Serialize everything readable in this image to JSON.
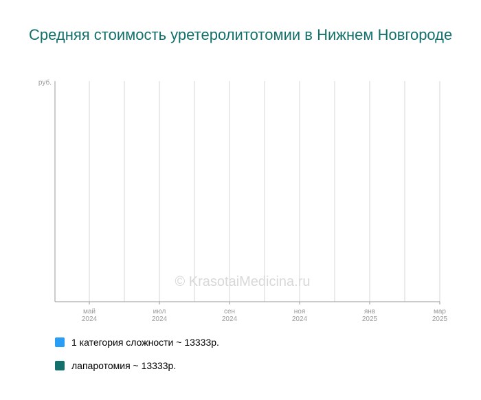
{
  "title": "Средняя стоимость уретеролитотомии в Нижнем Новгороде",
  "watermark": "© KrasotaiMedicina.ru",
  "colors": {
    "title": "#13706a",
    "axis": "#9a9a9a",
    "grid": "#d6d6d6",
    "series_1": "#2a9df4",
    "series_2": "#13706a"
  },
  "legend": [
    {
      "label": "1 категория сложности ~ 13333р.",
      "color": "#2a9df4"
    },
    {
      "label": "лапаротомия ~ 13333р.",
      "color": "#13706a"
    }
  ],
  "chart_data": {
    "type": "line",
    "title": "Средняя стоимость уретеролитотомии в Нижнем Новгороде",
    "ylabel": "руб.",
    "x_tick_labels": [
      {
        "month": "май",
        "year": "2024"
      },
      {
        "month": "июл",
        "year": "2024"
      },
      {
        "month": "сен",
        "year": "2024"
      },
      {
        "month": "ноя",
        "year": "2024"
      },
      {
        "month": "янв",
        "year": "2025"
      },
      {
        "month": "мар",
        "year": "2025"
      }
    ],
    "grid": true,
    "legend_position": "bottom-left",
    "series": [
      {
        "name": "1 категория сложности ~ 13333р.",
        "values": []
      },
      {
        "name": "лапаротомия ~ 13333р.",
        "values": []
      }
    ]
  }
}
